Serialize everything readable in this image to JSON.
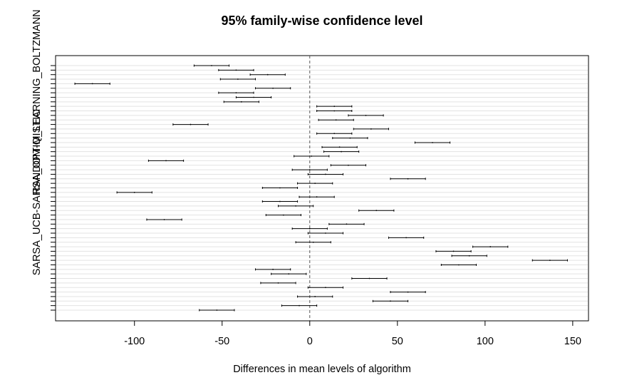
{
  "chart_data": {
    "type": "interval",
    "title": "95% family-wise confidence level",
    "xlabel": "Differences in mean levels of algorithm",
    "xlim": [
      -145,
      159
    ],
    "xticks": [
      -100,
      -50,
      0,
      50,
      100,
      150
    ],
    "reference_line": 0,
    "y_tick_labels": [
      {
        "row": 8,
        "text": "RANDOM-Q_LEARNING_BOLTZMANN"
      },
      {
        "row": 28,
        "text": "SARSA_UCB-SARSA_OPTIMISTIC"
      }
    ],
    "intervals": [
      {
        "center": -56,
        "lower": -66,
        "upper": -46
      },
      {
        "center": -42,
        "lower": -52,
        "upper": -32
      },
      {
        "center": -24,
        "lower": -34,
        "upper": -14
      },
      {
        "center": -41,
        "lower": -51,
        "upper": -31
      },
      {
        "center": -124,
        "lower": -134,
        "upper": -114
      },
      {
        "center": -21,
        "lower": -31,
        "upper": -11
      },
      {
        "center": -42,
        "lower": -52,
        "upper": -32
      },
      {
        "center": -32,
        "lower": -42,
        "upper": -22
      },
      {
        "center": -39,
        "lower": -49,
        "upper": -29
      },
      {
        "center": 14,
        "lower": 4,
        "upper": 24
      },
      {
        "center": 14,
        "lower": 4,
        "upper": 24
      },
      {
        "center": 32,
        "lower": 22,
        "upper": 42
      },
      {
        "center": 15,
        "lower": 5,
        "upper": 25
      },
      {
        "center": -68,
        "lower": -78,
        "upper": -58
      },
      {
        "center": 35,
        "lower": 25,
        "upper": 45
      },
      {
        "center": 14,
        "lower": 4,
        "upper": 24
      },
      {
        "center": 23,
        "lower": 13,
        "upper": 33
      },
      {
        "center": 70,
        "lower": 60,
        "upper": 80
      },
      {
        "center": 17,
        "lower": 7,
        "upper": 27
      },
      {
        "center": 18,
        "lower": 8,
        "upper": 28
      },
      {
        "center": 1,
        "lower": -9,
        "upper": 11
      },
      {
        "center": -82,
        "lower": -92,
        "upper": -72
      },
      {
        "center": 22,
        "lower": 12,
        "upper": 32
      },
      {
        "center": 0,
        "lower": -10,
        "upper": 10
      },
      {
        "center": 9,
        "lower": -1,
        "upper": 19
      },
      {
        "center": 56,
        "lower": 46,
        "upper": 66
      },
      {
        "center": 3,
        "lower": -7,
        "upper": 13
      },
      {
        "center": -17,
        "lower": -27,
        "upper": -7
      },
      {
        "center": -100,
        "lower": -110,
        "upper": -90
      },
      {
        "center": 4,
        "lower": -6,
        "upper": 14
      },
      {
        "center": -17,
        "lower": -27,
        "upper": -7
      },
      {
        "center": -8,
        "lower": -18,
        "upper": 2
      },
      {
        "center": 38,
        "lower": 28,
        "upper": 48
      },
      {
        "center": -15,
        "lower": -25,
        "upper": -5
      },
      {
        "center": -83,
        "lower": -93,
        "upper": -73
      },
      {
        "center": 21,
        "lower": 11,
        "upper": 31
      },
      {
        "center": 0,
        "lower": -10,
        "upper": 10
      },
      {
        "center": 9,
        "lower": -1,
        "upper": 19
      },
      {
        "center": 55,
        "lower": 45,
        "upper": 65
      },
      {
        "center": 2,
        "lower": -8,
        "upper": 12
      },
      {
        "center": 103,
        "lower": 93,
        "upper": 113
      },
      {
        "center": 82,
        "lower": 72,
        "upper": 92
      },
      {
        "center": 91,
        "lower": 81,
        "upper": 101
      },
      {
        "center": 137,
        "lower": 127,
        "upper": 147
      },
      {
        "center": 85,
        "lower": 75,
        "upper": 95
      },
      {
        "center": -21,
        "lower": -31,
        "upper": -11
      },
      {
        "center": -12,
        "lower": -22,
        "upper": -2
      },
      {
        "center": 34,
        "lower": 24,
        "upper": 44
      },
      {
        "center": -18,
        "lower": -28,
        "upper": -8
      },
      {
        "center": 9,
        "lower": -1,
        "upper": 19
      },
      {
        "center": 56,
        "lower": 46,
        "upper": 66
      },
      {
        "center": 3,
        "lower": -7,
        "upper": 13
      },
      {
        "center": 46,
        "lower": 36,
        "upper": 56
      },
      {
        "center": -6,
        "lower": -16,
        "upper": 4
      },
      {
        "center": -53,
        "lower": -63,
        "upper": -43
      }
    ]
  }
}
